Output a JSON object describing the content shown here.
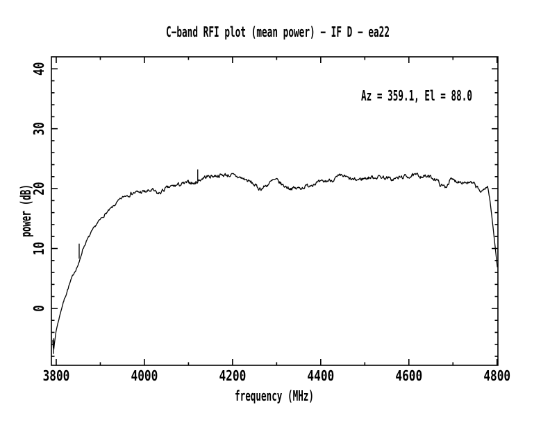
{
  "window": {
    "background": "#ffffff",
    "foreground": "#000000"
  },
  "chart_data": {
    "type": "line",
    "title": "C−band RFI plot (mean power) − IF D − ea22",
    "annotation": "Az = 359.1, El = 88.0",
    "xlabel": "frequency (MHz)",
    "ylabel": "power (dB)",
    "xlim": [
      3789,
      4802
    ],
    "ylim": [
      -9.5,
      42
    ],
    "x_major_ticks": [
      3800,
      4000,
      4200,
      4400,
      4600,
      4800
    ],
    "x_tick_labels": [
      "3800",
      "4000",
      "4200",
      "4400",
      "4600",
      "4800"
    ],
    "x_minor_step": 100,
    "y_major_ticks": [
      0,
      10,
      20,
      30,
      40
    ],
    "y_tick_labels": [
      "0",
      "10",
      "20",
      "30",
      "40"
    ],
    "y_minor_step": 2,
    "grid": false,
    "legend": "none",
    "line_color": "#000000",
    "noise_band_db": 0.32,
    "series": [
      {
        "name": "mean power",
        "points": [
          [
            3792,
            -5.2
          ],
          [
            3794,
            -7.2
          ],
          [
            3796,
            -5.8
          ],
          [
            3800,
            -3.6
          ],
          [
            3806,
            -1.8
          ],
          [
            3812,
            0.0
          ],
          [
            3820,
            1.9
          ],
          [
            3830,
            4.0
          ],
          [
            3840,
            5.9
          ],
          [
            3852,
            7.6
          ],
          [
            3860,
            9.9
          ],
          [
            3870,
            11.4
          ],
          [
            3880,
            12.7
          ],
          [
            3890,
            13.9
          ],
          [
            3902,
            15.0
          ],
          [
            3912,
            15.8
          ],
          [
            3922,
            16.5
          ],
          [
            3932,
            17.2
          ],
          [
            3942,
            18.0
          ],
          [
            3952,
            18.6
          ],
          [
            3962,
            19.0
          ],
          [
            3975,
            19.3
          ],
          [
            3990,
            19.4
          ],
          [
            4005,
            19.5
          ],
          [
            4018,
            19.7
          ],
          [
            4032,
            19.1
          ],
          [
            4046,
            19.9
          ],
          [
            4060,
            20.3
          ],
          [
            4075,
            20.6
          ],
          [
            4090,
            20.8
          ],
          [
            4105,
            21.1
          ],
          [
            4113,
            20.8
          ],
          [
            4122,
            21.3
          ],
          [
            4136,
            21.9
          ],
          [
            4152,
            22.1
          ],
          [
            4170,
            22.2
          ],
          [
            4185,
            22.3
          ],
          [
            4200,
            22.2
          ],
          [
            4215,
            21.9
          ],
          [
            4230,
            21.5
          ],
          [
            4245,
            20.9
          ],
          [
            4258,
            20.1
          ],
          [
            4266,
            20.0
          ],
          [
            4280,
            20.7
          ],
          [
            4293,
            21.4
          ],
          [
            4302,
            21.3
          ],
          [
            4315,
            20.5
          ],
          [
            4330,
            20.1
          ],
          [
            4345,
            20.0
          ],
          [
            4358,
            20.2
          ],
          [
            4372,
            20.5
          ],
          [
            4385,
            20.9
          ],
          [
            4400,
            21.0
          ],
          [
            4415,
            21.3
          ],
          [
            4428,
            21.5
          ],
          [
            4442,
            22.0
          ],
          [
            4452,
            22.1
          ],
          [
            4465,
            21.6
          ],
          [
            4478,
            21.4
          ],
          [
            4492,
            21.6
          ],
          [
            4505,
            21.8
          ],
          [
            4520,
            21.9
          ],
          [
            4535,
            22.0
          ],
          [
            4548,
            21.8
          ],
          [
            4562,
            21.5
          ],
          [
            4576,
            21.8
          ],
          [
            4590,
            22.0
          ],
          [
            4605,
            22.1
          ],
          [
            4618,
            22.2
          ],
          [
            4632,
            22.1
          ],
          [
            4648,
            21.9
          ],
          [
            4662,
            21.6
          ],
          [
            4673,
            20.5
          ],
          [
            4684,
            20.3
          ],
          [
            4694,
            21.5
          ],
          [
            4706,
            21.3
          ],
          [
            4720,
            21.2
          ],
          [
            4734,
            21.0
          ],
          [
            4748,
            20.7
          ],
          [
            4758,
            19.9
          ],
          [
            4766,
            19.3
          ],
          [
            4773,
            20.2
          ],
          [
            4779,
            20.3
          ],
          [
            4784,
            18.0
          ],
          [
            4789,
            14.8
          ],
          [
            4794,
            11.5
          ],
          [
            4798,
            8.8
          ],
          [
            4801,
            6.7
          ]
        ]
      }
    ],
    "spikes": [
      {
        "f": 3794,
        "db_lo": -7.6,
        "db_hi": -5.0
      },
      {
        "f": 3852,
        "db_lo": 8.3,
        "db_hi": 10.8
      },
      {
        "f": 4121,
        "db_lo": 21.2,
        "db_hi": 23.2
      }
    ]
  }
}
